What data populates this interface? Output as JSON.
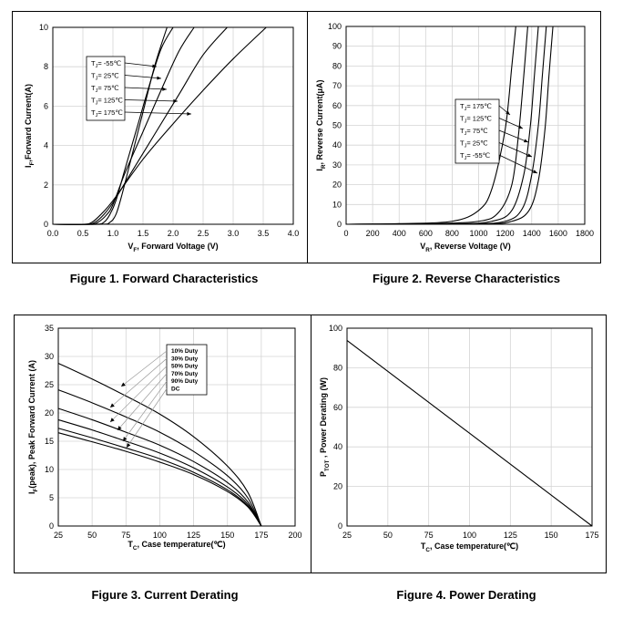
{
  "captions": {
    "fig1": "Figure 1. Forward Characteristics",
    "fig2": "Figure 2. Reverse Characteristics",
    "fig3": "Figure 3. Current Derating",
    "fig4": "Figure 4. Power Derating"
  },
  "chart_data": [
    {
      "id": "fig1",
      "type": "line",
      "ylabel": {
        "main": "I",
        "sub": "F",
        "rest": ",Forward Current(A)"
      },
      "xlabel": {
        "main": "V",
        "sub": "F",
        "rest": ", Forward Voltage (V)"
      },
      "xlim": [
        0,
        4
      ],
      "ylim": [
        0,
        10
      ],
      "xticks": [
        "0.0",
        "0.5",
        "1.0",
        "1.5",
        "2.0",
        "2.5",
        "3.0",
        "3.5",
        "4.0"
      ],
      "yticks": [
        "0",
        "2",
        "4",
        "6",
        "8",
        "10"
      ],
      "legend": [
        "Tⱼ= -55℃",
        "Tⱼ= 25℃",
        "Tⱼ= 75℃",
        "Tⱼ= 125℃",
        "Tⱼ= 175℃"
      ],
      "legend_labels": [
        {
          "prefix": "T",
          "sub": "J",
          "suffix": "= -55℃"
        },
        {
          "prefix": "T",
          "sub": "J",
          "suffix": "= 25℃"
        },
        {
          "prefix": "T",
          "sub": "J",
          "suffix": "= 75℃"
        },
        {
          "prefix": "T",
          "sub": "J",
          "suffix": "= 125℃"
        },
        {
          "prefix": "T",
          "sub": "J",
          "suffix": "= 175℃"
        }
      ],
      "series": [
        {
          "name": "Tⱼ= -55℃",
          "x": [
            0,
            0.8,
            0.95,
            1.05,
            1.15,
            1.3,
            1.5,
            1.7,
            1.9
          ],
          "y": [
            0,
            0,
            0.1,
            0.5,
            1.5,
            3.3,
            5.7,
            8.1,
            10
          ]
        },
        {
          "name": "Tⱼ= 25℃",
          "x": [
            0,
            0.7,
            0.85,
            0.95,
            1.05,
            1.2,
            1.4,
            1.6,
            1.8,
            2.0
          ],
          "y": [
            0,
            0,
            0.1,
            0.5,
            1.2,
            2.8,
            4.9,
            7.0,
            8.9,
            10
          ]
        },
        {
          "name": "Tⱼ= 75℃",
          "x": [
            0,
            0.6,
            0.75,
            0.9,
            1.0,
            1.2,
            1.5,
            1.8,
            2.1,
            2.35
          ],
          "y": [
            0,
            0,
            0.1,
            0.5,
            1.0,
            2.6,
            4.7,
            6.8,
            8.8,
            10
          ]
        },
        {
          "name": "Tⱼ= 125℃",
          "x": [
            0,
            0.55,
            0.7,
            0.85,
            1.0,
            1.3,
            1.7,
            2.1,
            2.5,
            2.9
          ],
          "y": [
            0,
            0,
            0.1,
            0.5,
            1.1,
            2.6,
            4.6,
            6.6,
            8.6,
            10
          ]
        },
        {
          "name": "Tⱼ= 175℃",
          "x": [
            0,
            0.5,
            0.65,
            0.8,
            1.0,
            1.5,
            2.0,
            2.5,
            3.0,
            3.55
          ],
          "y": [
            0,
            0,
            0.1,
            0.5,
            1.2,
            3.3,
            5.1,
            6.8,
            8.4,
            10
          ]
        }
      ]
    },
    {
      "id": "fig2",
      "type": "line",
      "ylabel": {
        "main": "I",
        "sub": "R",
        "rest": ", Reverse Current(μA)"
      },
      "xlabel": {
        "main": "V",
        "sub": "R",
        "rest": ", Reverse Voltage (V)"
      },
      "xlim": [
        0,
        1800
      ],
      "ylim": [
        0,
        100
      ],
      "xticks": [
        "0",
        "200",
        "400",
        "600",
        "800",
        "1000",
        "1200",
        "1400",
        "1600",
        "1800"
      ],
      "yticks": [
        "0",
        "10",
        "20",
        "30",
        "40",
        "50",
        "60",
        "70",
        "80",
        "90",
        "100"
      ],
      "legend_labels": [
        {
          "prefix": "T",
          "sub": "J",
          "suffix": "= 175℃"
        },
        {
          "prefix": "T",
          "sub": "J",
          "suffix": "= 125℃"
        },
        {
          "prefix": "T",
          "sub": "J",
          "suffix": "= 75℃"
        },
        {
          "prefix": "T",
          "sub": "J",
          "suffix": "= 25℃"
        },
        {
          "prefix": "T",
          "sub": "J",
          "suffix": "= -55℃"
        }
      ],
      "series": [
        {
          "name": "Tⱼ= 175℃",
          "x": [
            0,
            400,
            800,
            1000,
            1100,
            1200,
            1250,
            1280
          ],
          "y": [
            0,
            0.3,
            1.5,
            7,
            18,
            48,
            80,
            100
          ]
        },
        {
          "name": "Tⱼ= 125℃",
          "x": [
            0,
            600,
            1000,
            1150,
            1250,
            1300,
            1340,
            1370
          ],
          "y": [
            0,
            0.2,
            1.5,
            6,
            20,
            45,
            75,
            100
          ]
        },
        {
          "name": "Tⱼ= 75℃",
          "x": [
            0,
            800,
            1100,
            1250,
            1340,
            1390,
            1420,
            1450
          ],
          "y": [
            0,
            0.2,
            1.5,
            7,
            25,
            50,
            75,
            100
          ]
        },
        {
          "name": "Tⱼ= 25℃",
          "x": [
            0,
            900,
            1200,
            1330,
            1400,
            1450,
            1480,
            1510
          ],
          "y": [
            0,
            0.2,
            1.5,
            8,
            25,
            50,
            75,
            100
          ]
        },
        {
          "name": "Tⱼ= -55℃",
          "x": [
            0,
            1000,
            1250,
            1380,
            1450,
            1500,
            1530,
            1560
          ],
          "y": [
            0,
            0.2,
            1.5,
            7,
            22,
            48,
            75,
            100
          ]
        }
      ]
    },
    {
      "id": "fig3",
      "type": "line",
      "ylabel": {
        "main": "I",
        "sub": "F",
        "rest": "(peak), Peak Forward Current (A)"
      },
      "xlabel": {
        "main": "T",
        "sub": "C",
        "rest": ", Case temperature(℃)"
      },
      "xlim": [
        25,
        200
      ],
      "ylim": [
        0,
        35
      ],
      "xticks": [
        "25",
        "50",
        "75",
        "100",
        "125",
        "150",
        "175",
        "200"
      ],
      "yticks": [
        "0",
        "5",
        "10",
        "15",
        "20",
        "25",
        "30",
        "35"
      ],
      "legend": [
        "10% Duty",
        "30% Duty",
        "50% Duty",
        "70% Duty",
        "90% Duty",
        "DC"
      ],
      "series": [
        {
          "name": "10% Duty",
          "x": [
            25,
            50,
            75,
            100,
            125,
            150,
            165,
            175
          ],
          "y": [
            28.8,
            26.0,
            23.0,
            19.8,
            15.8,
            10.6,
            6.0,
            0
          ]
        },
        {
          "name": "30% Duty",
          "x": [
            25,
            50,
            75,
            100,
            125,
            150,
            165,
            175
          ],
          "y": [
            24.1,
            21.8,
            19.3,
            16.6,
            13.2,
            8.9,
            5.0,
            0
          ]
        },
        {
          "name": "50% Duty",
          "x": [
            25,
            50,
            75,
            100,
            125,
            150,
            165,
            175
          ],
          "y": [
            20.8,
            18.8,
            16.6,
            14.3,
            11.4,
            7.7,
            4.3,
            0
          ]
        },
        {
          "name": "70% Duty",
          "x": [
            25,
            50,
            75,
            100,
            125,
            150,
            165,
            175
          ],
          "y": [
            18.8,
            17.0,
            15.0,
            12.9,
            10.3,
            6.9,
            3.9,
            0
          ]
        },
        {
          "name": "90% Duty",
          "x": [
            25,
            50,
            75,
            100,
            125,
            150,
            165,
            175
          ],
          "y": [
            17.3,
            15.6,
            13.8,
            11.9,
            9.5,
            6.4,
            3.6,
            0
          ]
        },
        {
          "name": "DC",
          "x": [
            25,
            50,
            75,
            100,
            125,
            150,
            165,
            175
          ],
          "y": [
            16.5,
            14.9,
            13.2,
            11.3,
            9.1,
            6.1,
            3.4,
            0
          ]
        }
      ]
    },
    {
      "id": "fig4",
      "type": "line",
      "ylabel": {
        "main": "P",
        "sub": "TOT",
        "rest": " , Power Derating (W)"
      },
      "xlabel": {
        "main": "T",
        "sub": "C",
        "rest": ", Case temperature(℃)"
      },
      "xlim": [
        25,
        175
      ],
      "ylim": [
        0,
        100
      ],
      "xticks": [
        "25",
        "50",
        "75",
        "100",
        "125",
        "150",
        "175"
      ],
      "yticks": [
        "0",
        "20",
        "40",
        "60",
        "80",
        "100"
      ],
      "series": [
        {
          "x": [
            25,
            175
          ],
          "y": [
            93.8,
            0
          ]
        }
      ]
    }
  ]
}
